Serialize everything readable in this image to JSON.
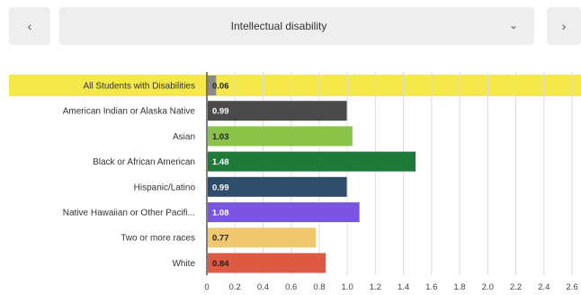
{
  "nav": {
    "prev_icon": "‹",
    "next_icon": "›"
  },
  "selector": {
    "value": "Intellectual disability",
    "caret": "⌄"
  },
  "chart_data": {
    "type": "bar",
    "orientation": "horizontal",
    "categories": [
      "All Students with Disabilities",
      "American Indian or Alaska Native",
      "Asian",
      "Black or African American",
      "Hispanic/Latino",
      "Native Hawaiian or Other Pacifi...",
      "Two or more races",
      "White"
    ],
    "values": [
      0.06,
      0.99,
      1.03,
      1.48,
      0.99,
      1.08,
      0.77,
      0.84
    ],
    "value_labels": [
      "0.06",
      "0.99",
      "1.03",
      "1.48",
      "0.99",
      "1.08",
      "0.77",
      "0.84"
    ],
    "colors": [
      "#8a8a8a",
      "#4a4a4a",
      "#8bc34a",
      "#1f7a3a",
      "#2d4d6b",
      "#7a55e0",
      "#f0c870",
      "#dd5a44"
    ],
    "label_colors": [
      "#222222",
      "#ffffff",
      "#222222",
      "#ffffff",
      "#ffffff",
      "#ffffff",
      "#222222",
      "#222222"
    ],
    "highlight_index": 0,
    "highlight_color": "#f4e84a",
    "xlim": [
      0,
      2.6
    ],
    "xticks": [
      "0",
      "0.2",
      "0.4",
      "0.6",
      "0.8",
      "1.0",
      "1.2",
      "1.4",
      "1.6",
      "1.8",
      "2.0",
      "2.2",
      "2.4",
      "2.6"
    ],
    "grid": true,
    "title": "",
    "xlabel": "",
    "ylabel": ""
  }
}
